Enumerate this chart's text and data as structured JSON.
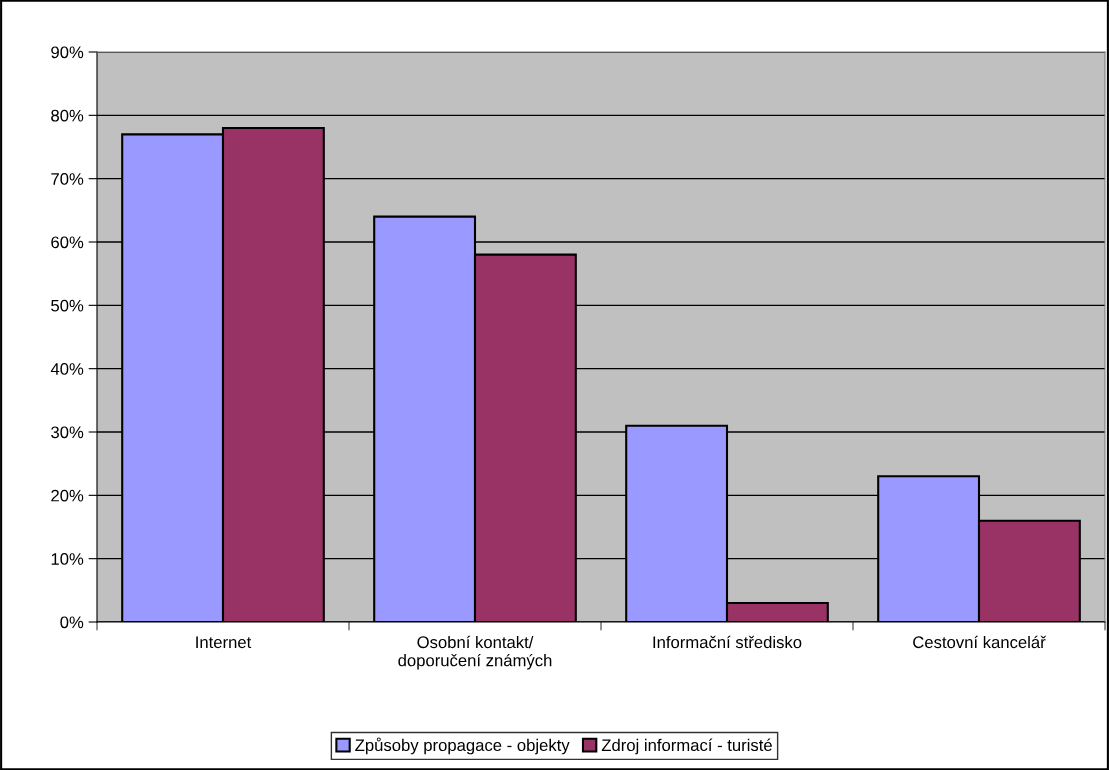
{
  "chart_data": {
    "type": "bar",
    "categories": [
      "Internet",
      "Osobní kontakt/\ndoporučení známých",
      "Informační středisko",
      "Cestovní kancelář"
    ],
    "series": [
      {
        "name": "Způsoby propagace - objekty",
        "color": "#9999ff",
        "values": [
          77,
          64,
          31,
          23
        ]
      },
      {
        "name": "Zdroj informací - turisté",
        "color": "#993366",
        "values": [
          78,
          58,
          3,
          16
        ]
      }
    ],
    "ylim": [
      0,
      90
    ],
    "yticks": [
      {
        "value": 0,
        "label": "0%"
      },
      {
        "value": 10,
        "label": "10%"
      },
      {
        "value": 20,
        "label": "20%"
      },
      {
        "value": 30,
        "label": "30%"
      },
      {
        "value": 40,
        "label": "40%"
      },
      {
        "value": 50,
        "label": "50%"
      },
      {
        "value": 60,
        "label": "60%"
      },
      {
        "value": 70,
        "label": "70%"
      },
      {
        "value": 80,
        "label": "80%"
      },
      {
        "value": 90,
        "label": "90%"
      }
    ],
    "grid": "y",
    "legend": "bottom"
  }
}
